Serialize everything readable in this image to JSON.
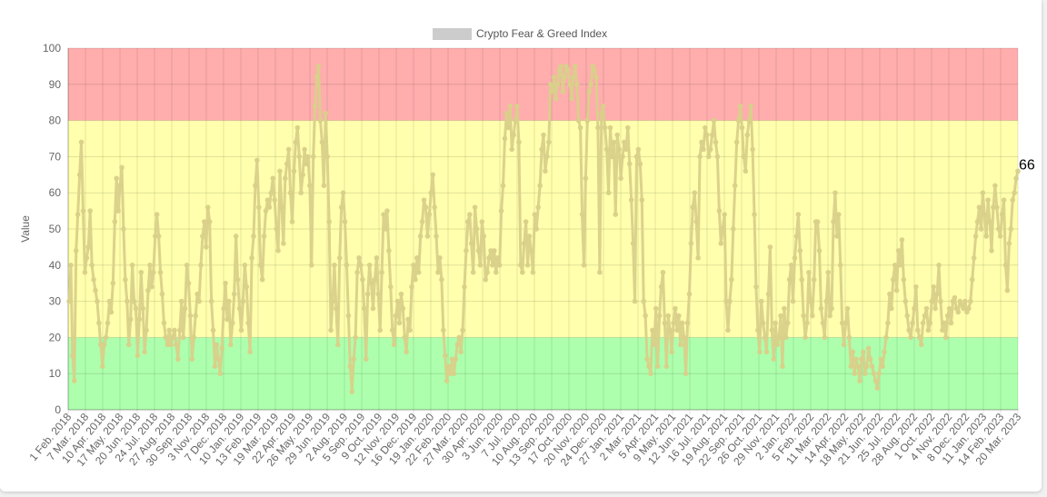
{
  "chart_data": {
    "type": "line",
    "legend": {
      "label": "Crypto Fear & Greed Index",
      "position": "top",
      "swatch_color": "#cccccc"
    },
    "ylabel": "Value",
    "xlabel": "",
    "ylim": [
      0,
      100
    ],
    "y_ticks": [
      0,
      10,
      20,
      30,
      40,
      50,
      60,
      70,
      80,
      90,
      100
    ],
    "grid": true,
    "bands": [
      {
        "from": 80,
        "to": 100,
        "color": "#ff9999"
      },
      {
        "from": 20,
        "to": 80,
        "color": "#ffff99"
      },
      {
        "from": 0,
        "to": 20,
        "color": "#99ff99"
      }
    ],
    "series_color": "#d9d08a",
    "end_label": "66",
    "x_ticks": [
      "1 Feb. 2018",
      "7 Mar. 2018",
      "10 Apr. 2018",
      "17 May. 2018",
      "20 Jun. 2018",
      "24 Jul. 2018",
      "27 Aug. 2018",
      "30 Sep. 2018",
      "3 Nov. 2018",
      "7 Dec. 2018",
      "10 Jan. 2019",
      "13 Feb. 2019",
      "19 Mar. 2019",
      "22 Apr. 2019",
      "26 May. 2019",
      "29 Jun. 2019",
      "2 Aug. 2019",
      "5 Sep. 2019",
      "9 Oct. 2019",
      "12 Nov. 2019",
      "16 Dec. 2019",
      "19 Jan. 2020",
      "22 Feb. 2020",
      "27 Mar. 2020",
      "30 Apr. 2020",
      "3 Jun. 2020",
      "7 Jul. 2020",
      "10 Aug. 2020",
      "13 Sep. 2020",
      "17 Oct. 2020",
      "20 Nov. 2020",
      "24 Dec. 2020",
      "27 Jan. 2021",
      "2 Mar. 2021",
      "5 Apr. 2021",
      "9 May. 2021",
      "12 Jun. 2021",
      "16 Jul. 2021",
      "19 Aug. 2021",
      "22 Sep. 2021",
      "26 Oct. 2021",
      "29 Nov. 2021",
      "2 Jan. 2022",
      "5 Feb. 2022",
      "11 Mar. 2022",
      "14 Apr. 2022",
      "18 May. 2022",
      "21 Jun. 2022",
      "25 Jul. 2022",
      "28 Aug. 2022",
      "1 Oct. 2022",
      "4 Nov. 2022",
      "8 Dec. 2022",
      "11 Jan. 2023",
      "14 Feb. 2023",
      "20 Mar. 2023"
    ],
    "series": [
      {
        "values": [
          30,
          40,
          15,
          8,
          44,
          54,
          65,
          74,
          55,
          38,
          42,
          45,
          55,
          40,
          36,
          33,
          30,
          24,
          18,
          12,
          18,
          20,
          24,
          30,
          27,
          35,
          52,
          64,
          55,
          62,
          67,
          50,
          36,
          30,
          18,
          25,
          40,
          30,
          28,
          15,
          25,
          38,
          28,
          16,
          22,
          33,
          40,
          34,
          38,
          48,
          54,
          48,
          38,
          32,
          24,
          20,
          18,
          22,
          18,
          20,
          22,
          18,
          14,
          22,
          30,
          20,
          28,
          40,
          35,
          26,
          14,
          20,
          26,
          32,
          30,
          40,
          48,
          52,
          45,
          56,
          52,
          30,
          22,
          12,
          18,
          14,
          10,
          17,
          28,
          35,
          25,
          30,
          18,
          24,
          32,
          48,
          36,
          28,
          22,
          30,
          40,
          34,
          24,
          16,
          42,
          48,
          62,
          69,
          56,
          40,
          36,
          48,
          55,
          58,
          56,
          60,
          64,
          58,
          50,
          44,
          66,
          56,
          46,
          64,
          68,
          72,
          60,
          52,
          66,
          74,
          78,
          70,
          60,
          65,
          72,
          68,
          70,
          62,
          40,
          70,
          84,
          92,
          95,
          80,
          74,
          62,
          82,
          70,
          52,
          22,
          30,
          40,
          28,
          18,
          42,
          56,
          60,
          52,
          40,
          26,
          12,
          5,
          14,
          20,
          38,
          42,
          40,
          36,
          28,
          14,
          32,
          40,
          35,
          28,
          36,
          42,
          32,
          22,
          38,
          54,
          50,
          55,
          44,
          34,
          22,
          18,
          26,
          30,
          24,
          32,
          28,
          20,
          16,
          25,
          22,
          34,
          40,
          36,
          42,
          38,
          48,
          52,
          58,
          56,
          48,
          54,
          60,
          65,
          56,
          48,
          38,
          42,
          36,
          22,
          15,
          8,
          12,
          10,
          14,
          10,
          14,
          18,
          20,
          16,
          22,
          34,
          44,
          52,
          54,
          46,
          38,
          56,
          50,
          44,
          40,
          52,
          48,
          36,
          38,
          42,
          44,
          40,
          44,
          38,
          42,
          40,
          55,
          62,
          75,
          82,
          78,
          84,
          72,
          76,
          80,
          84,
          74,
          40,
          38,
          46,
          52,
          40,
          48,
          44,
          38,
          54,
          50,
          56,
          62,
          72,
          76,
          66,
          70,
          74,
          90,
          88,
          92,
          86,
          90,
          94,
          95,
          88,
          92,
          95,
          94,
          90,
          86,
          92,
          95,
          90,
          80,
          78,
          54,
          40,
          64,
          80,
          88,
          90,
          95,
          94,
          92,
          78,
          38,
          82,
          84,
          78,
          72,
          60,
          78,
          70,
          74,
          54,
          76,
          72,
          64,
          70,
          74,
          72,
          78,
          68,
          58,
          46,
          30,
          70,
          72,
          68,
          58,
          30,
          26,
          14,
          12,
          10,
          22,
          18,
          28,
          12,
          26,
          34,
          38,
          24,
          12,
          26,
          22,
          16,
          24,
          28,
          22,
          26,
          18,
          24,
          20,
          10,
          24,
          32,
          46,
          56,
          60,
          52,
          42,
          70,
          74,
          72,
          78,
          76,
          70,
          72,
          76,
          80,
          74,
          70,
          55,
          46,
          50,
          54,
          30,
          22,
          30,
          36,
          50,
          62,
          74,
          80,
          84,
          78,
          70,
          66,
          76,
          80,
          84,
          72,
          54,
          34,
          22,
          16,
          30,
          24,
          20,
          16,
          32,
          45,
          22,
          14,
          24,
          18,
          20,
          26,
          12,
          28,
          20,
          24,
          36,
          40,
          30,
          42,
          48,
          54,
          44,
          36,
          26,
          20,
          24,
          38,
          30,
          26,
          36,
          52,
          52,
          44,
          28,
          24,
          20,
          30,
          38,
          26,
          28,
          52,
          60,
          48,
          54,
          40,
          24,
          18,
          24,
          28,
          20,
          12,
          16,
          10,
          14,
          12,
          8,
          14,
          16,
          10,
          12,
          17,
          14,
          12,
          10,
          8,
          6,
          10,
          14,
          12,
          16,
          20,
          24,
          32,
          28,
          36,
          40,
          33,
          44,
          40,
          47,
          36,
          30,
          26,
          22,
          20,
          24,
          28,
          34,
          22,
          20,
          18,
          24,
          26,
          28,
          22,
          24,
          30,
          34,
          28,
          32,
          40,
          30,
          22,
          24,
          20,
          26,
          28,
          24,
          30,
          31,
          28,
          27,
          30,
          29,
          28,
          30,
          27,
          28,
          30,
          36,
          42,
          48,
          52,
          56,
          50,
          60,
          54,
          48,
          58,
          52,
          44,
          56,
          62,
          56,
          50,
          48,
          54,
          58,
          40,
          33,
          46,
          50,
          58,
          60,
          64,
          66
        ]
      }
    ]
  }
}
